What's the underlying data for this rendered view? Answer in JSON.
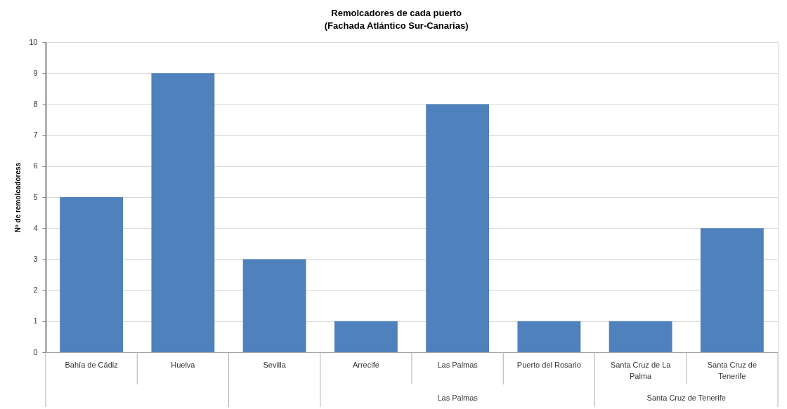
{
  "chart_data": {
    "type": "bar",
    "title": "Remolcadores de cada puerto",
    "subtitle": "(Fachada Atlántico Sur-Canarias)",
    "ylabel": "Nº de remolcadoress",
    "categories": [
      "Bahía de Cádiz",
      "Huelva",
      "Sevilla",
      "Arrecife",
      "Las Palmas",
      "Puerto del Rosario",
      "Santa Cruz de La Palma",
      "Santa Cruz de Tenerife"
    ],
    "values": [
      5,
      9,
      3,
      1,
      8,
      1,
      1,
      4
    ],
    "color": "#4f81bd",
    "ylim": [
      0,
      10
    ],
    "yticks": [
      0,
      1,
      2,
      3,
      4,
      5,
      6,
      7,
      8,
      9,
      10
    ],
    "grid": "y",
    "annotations": [
      "Las Palmas",
      "Santa Cruz de Tenerife"
    ]
  }
}
